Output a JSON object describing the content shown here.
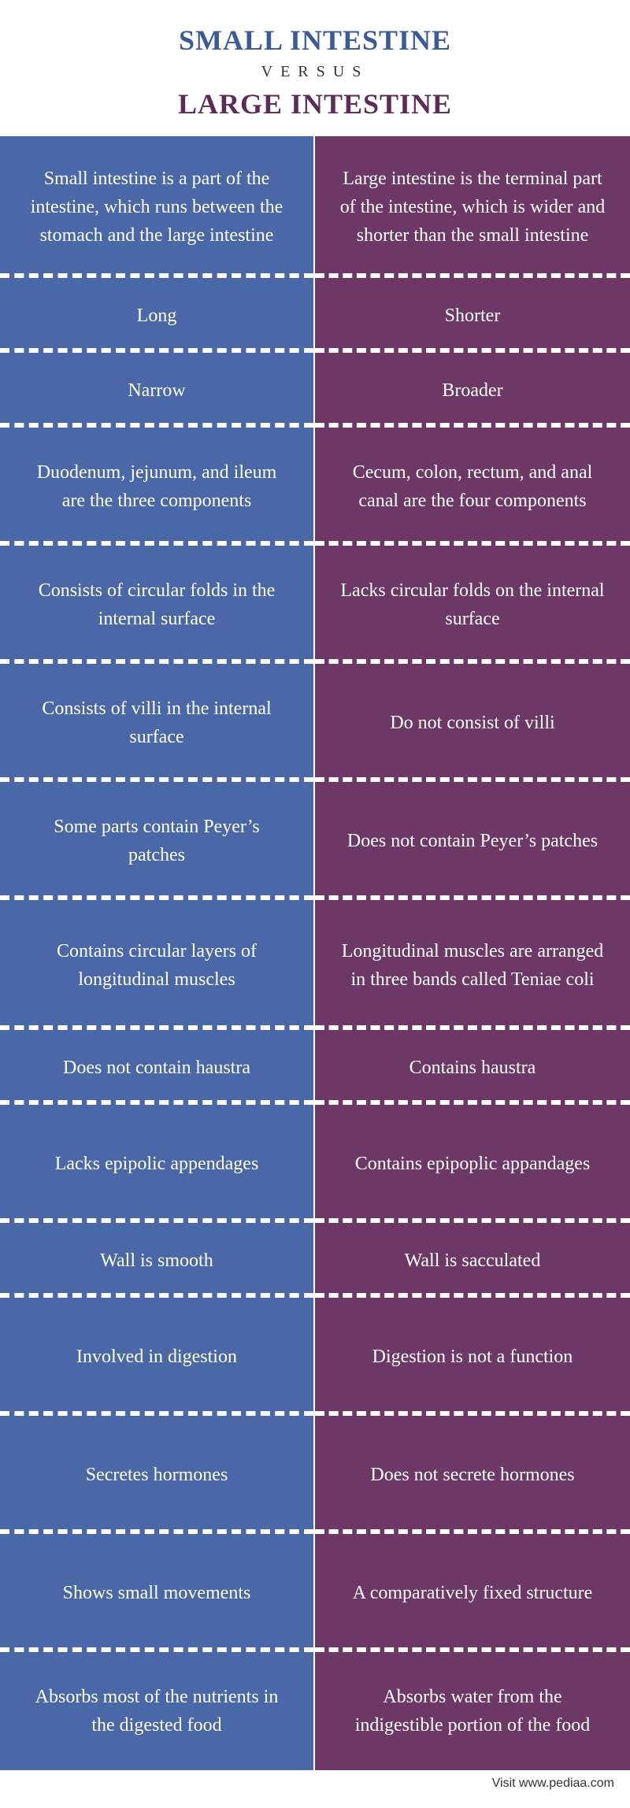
{
  "header": {
    "title1": "SMALL INTESTINE",
    "title1_color": "#3a5a9a",
    "versus": "VERSUS",
    "title2": "LARGE INTESTINE",
    "title2_color": "#5d2c56"
  },
  "colors": {
    "left_bg": "#4a68a8",
    "right_bg": "#6d3865",
    "text": "#ffffff"
  },
  "rows": [
    {
      "left": "Small intestine is a part of the intestine, which runs between the stomach and the large intestine",
      "right": "Large intestine is the terminal part of the intestine, which is wider and shorter than the small intestine",
      "height": "h-def"
    },
    {
      "left": "Long",
      "right": "Shorter",
      "height": "h-short"
    },
    {
      "left": "Narrow",
      "right": "Broader",
      "height": "h-short"
    },
    {
      "left": "Duodenum, jejunum, and ileum are the three components",
      "right": "Cecum, colon, rectum, and anal canal are the four components",
      "height": "h-med"
    },
    {
      "left": "Consists of circular folds in the internal surface",
      "right": "Lacks circular folds on the internal surface",
      "height": "h-med"
    },
    {
      "left": "Consists of villi in the internal surface",
      "right": "Do not consist of villi",
      "height": "h-med"
    },
    {
      "left": "Some parts contain Peyer’s patches",
      "right": "Does not contain Peyer’s patches",
      "height": "h-med"
    },
    {
      "left": "Contains circular layers of longitudinal muscles",
      "right": "Longitudinal muscles are arranged in three bands called Teniae coli",
      "height": "h-tall"
    },
    {
      "left": "Does not contain haustra",
      "right": "Contains haustra",
      "height": "h-short"
    },
    {
      "left": "Lacks epipolic appendages",
      "right": "Contains epipoplic appandages",
      "height": "h-med"
    },
    {
      "left": "Wall is smooth",
      "right": "Wall is sacculated",
      "height": "h-short"
    },
    {
      "left": "Involved in digestion",
      "right": "Digestion is not a function",
      "height": "h-med"
    },
    {
      "left": "Secretes hormones",
      "right": "Does not secrete hormones",
      "height": "h-med"
    },
    {
      "left": "Shows small movements",
      "right": "A comparatively fixed structure",
      "height": "h-med"
    },
    {
      "left": "Absorbs most of the nutrients in the digested food",
      "right": "Absorbs water from the indigestible portion of the food",
      "height": "h-med"
    }
  ],
  "footer": "Visit www.pediaa.com"
}
